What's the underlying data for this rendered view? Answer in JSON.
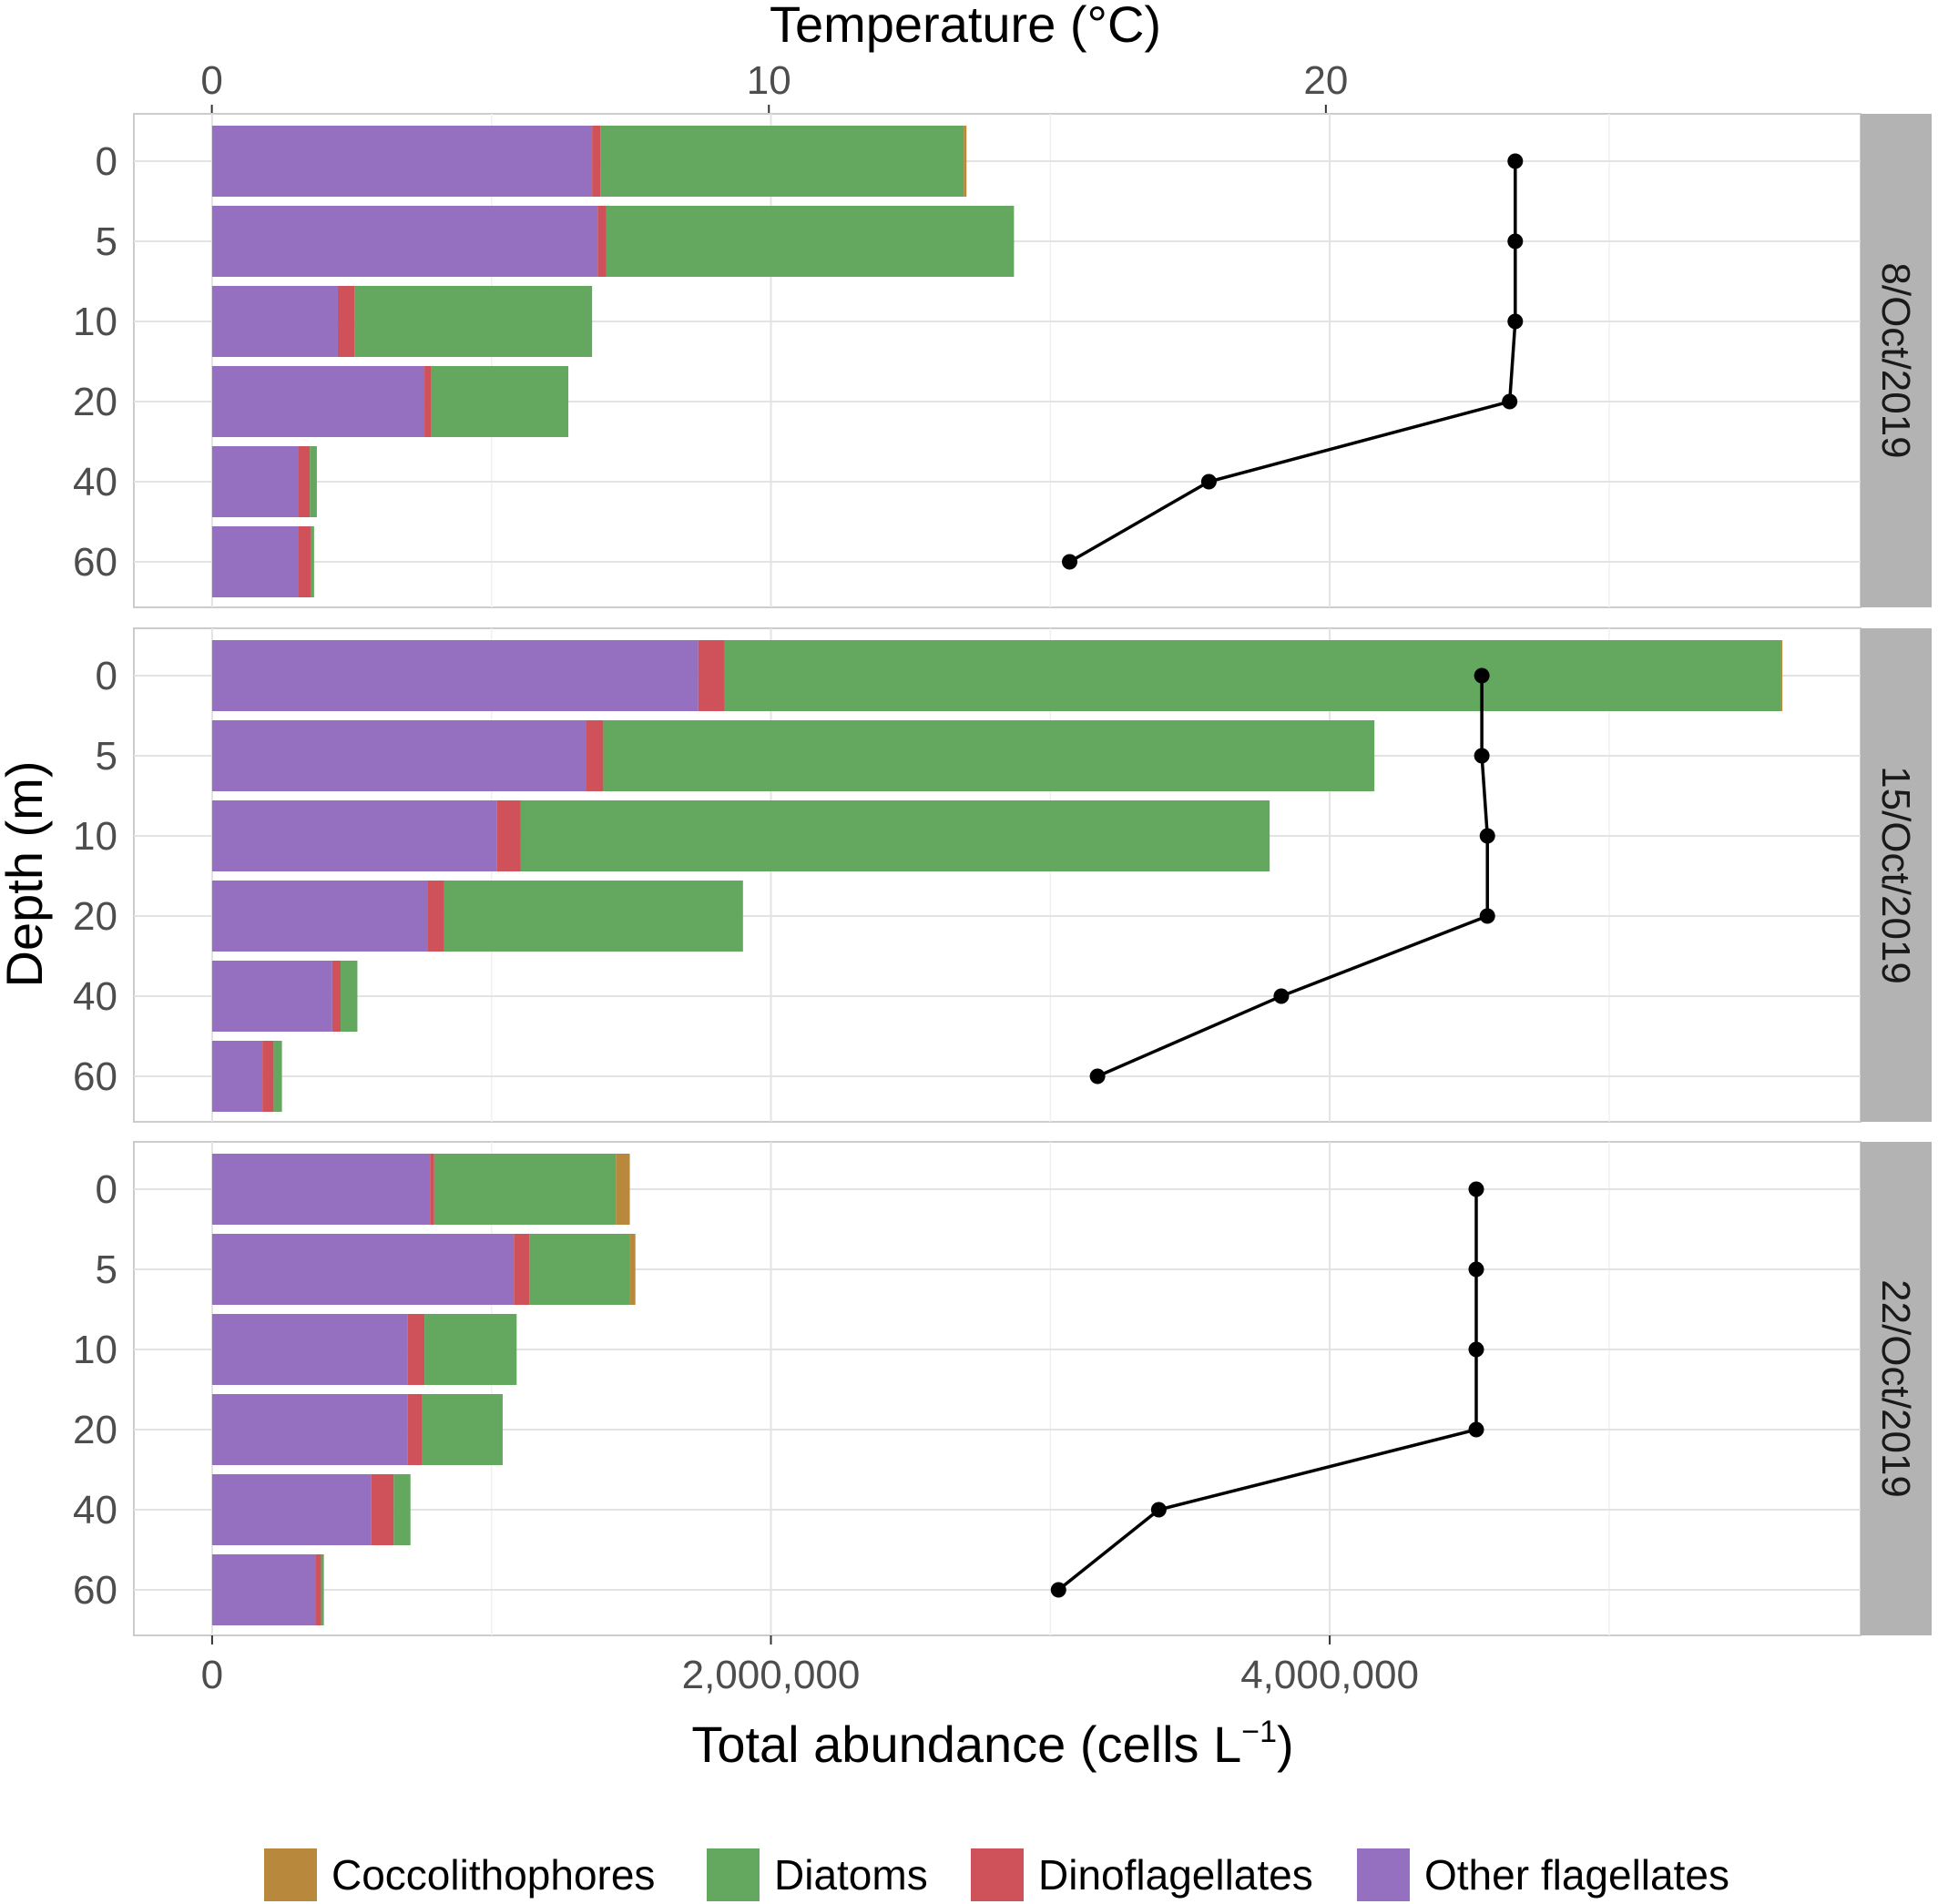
{
  "chart_data": {
    "type": "bar",
    "orientation": "horizontal",
    "stacked": true,
    "ylabel": "Depth (m)",
    "xlabel_bottom": "Total abundance (cells L",
    "xlabel_bottom_superscript": "−1",
    "xlabel_bottom_close": ")",
    "xlabel_top": "Temperature (°C)",
    "x_bottom_ticks": [
      "0",
      "2,000,000",
      "4,000,000"
    ],
    "x_bottom_tick_values": [
      0,
      2000000,
      4000000
    ],
    "x_bottom_range": [
      -280000,
      5900000
    ],
    "x_top_ticks": [
      "0",
      "10",
      "20"
    ],
    "x_top_tick_values": [
      0,
      10,
      20
    ],
    "x_top_range": [
      -1.4,
      29.6
    ],
    "depths": [
      "0",
      "5",
      "10",
      "20",
      "40",
      "60"
    ],
    "grid": true,
    "legend_position": "bottom",
    "colors": {
      "Coccolithophores": "#B8893C",
      "Diatoms": "#64A85F",
      "Dinoflagellates": "#CF5159",
      "Other flagellates": "#9570C0"
    },
    "series_order": [
      "Other flagellates",
      "Dinoflagellates",
      "Diatoms",
      "Coccolithophores"
    ],
    "legend": [
      "Coccolithophores",
      "Diatoms",
      "Dinoflagellates",
      "Other flagellates"
    ],
    "panels": [
      {
        "date": "8/Oct/2019",
        "series": [
          {
            "name": "Other flagellates",
            "values": [
              1360000,
              1380000,
              450000,
              760000,
              310000,
              310000
            ]
          },
          {
            "name": "Dinoflagellates",
            "values": [
              30000,
              30000,
              60000,
              25000,
              40000,
              45000
            ]
          },
          {
            "name": "Diatoms",
            "values": [
              1300000,
              1460000,
              850000,
              490000,
              25000,
              10000
            ]
          },
          {
            "name": "Coccolithophores",
            "values": [
              10000,
              0,
              0,
              0,
              0,
              0
            ]
          }
        ],
        "temperature": [
          23.4,
          23.4,
          23.4,
          23.3,
          17.9,
          15.4
        ]
      },
      {
        "date": "15/Oct/2019",
        "series": [
          {
            "name": "Other flagellates",
            "values": [
              1740000,
              1340000,
              1020000,
              770000,
              430000,
              180000
            ]
          },
          {
            "name": "Dinoflagellates",
            "values": [
              95000,
              60000,
              85000,
              60000,
              30000,
              40000
            ]
          },
          {
            "name": "Diatoms",
            "values": [
              3780000,
              2760000,
              2680000,
              1070000,
              60000,
              30000
            ]
          },
          {
            "name": "Coccolithophores",
            "values": [
              5000,
              0,
              0,
              0,
              0,
              0
            ]
          }
        ],
        "temperature": [
          22.8,
          22.8,
          22.9,
          22.9,
          19.2,
          15.9
        ]
      },
      {
        "date": "22/Oct/2019",
        "series": [
          {
            "name": "Other flagellates",
            "values": [
              780000,
              1080000,
              700000,
              700000,
              570000,
              370000
            ]
          },
          {
            "name": "Dinoflagellates",
            "values": [
              15000,
              55000,
              60000,
              50000,
              80000,
              20000
            ]
          },
          {
            "name": "Diatoms",
            "values": [
              650000,
              360000,
              330000,
              290000,
              60000,
              10000
            ]
          },
          {
            "name": "Coccolithophores",
            "values": [
              50000,
              20000,
              0,
              0,
              0,
              0
            ]
          }
        ],
        "temperature": [
          22.7,
          22.7,
          22.7,
          22.7,
          17.0,
          15.2
        ]
      }
    ]
  }
}
